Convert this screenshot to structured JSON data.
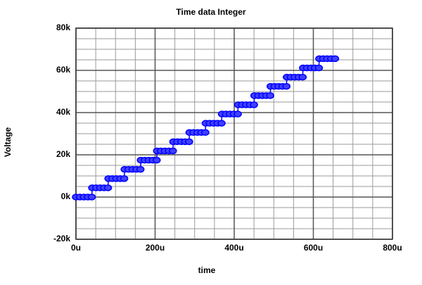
{
  "chart_data": {
    "type": "line",
    "title": "Time data Integer",
    "xlabel": "time",
    "ylabel": "Voltage",
    "x": [
      0,
      10,
      20,
      30,
      40,
      41,
      51,
      61,
      71,
      81,
      82,
      92,
      102,
      112,
      122,
      123,
      133,
      143,
      153,
      163,
      164,
      174,
      184,
      194,
      204,
      205,
      215,
      225,
      235,
      245,
      246,
      256,
      266,
      276,
      286,
      287,
      297,
      307,
      317,
      327,
      328,
      338,
      348,
      358,
      368,
      369,
      379,
      389,
      399,
      409,
      410,
      420,
      430,
      440,
      450,
      451,
      461,
      471,
      481,
      491,
      492,
      502,
      512,
      522,
      532,
      533,
      543,
      553,
      563,
      573,
      574,
      584,
      594,
      604,
      614,
      615,
      625,
      635,
      645,
      655
    ],
    "series": [
      {
        "color": "#0000ff",
        "values": [
          0,
          0,
          0,
          0,
          0,
          4369,
          4369,
          4369,
          4369,
          4369,
          8738,
          8738,
          8738,
          8738,
          8738,
          13107,
          13107,
          13107,
          13107,
          13107,
          17476,
          17476,
          17476,
          17476,
          17476,
          21845,
          21845,
          21845,
          21845,
          21845,
          26214,
          26214,
          26214,
          26214,
          26214,
          30583,
          30583,
          30583,
          30583,
          30583,
          34952,
          34952,
          34952,
          34952,
          34952,
          39321,
          39321,
          39321,
          39321,
          39321,
          43690,
          43690,
          43690,
          43690,
          43690,
          48059,
          48059,
          48059,
          48059,
          48059,
          52428,
          52428,
          52428,
          52428,
          52428,
          56797,
          56797,
          56797,
          56797,
          56797,
          61166,
          61166,
          61166,
          61166,
          61166,
          65535,
          65535,
          65535,
          65535,
          65535
        ]
      }
    ],
    "xlim": [
      0,
      800
    ],
    "xticks": [
      {
        "value": 0,
        "label": "0u"
      },
      {
        "value": 200,
        "label": "200u"
      },
      {
        "value": 400,
        "label": "400u"
      },
      {
        "value": 600,
        "label": "600u"
      },
      {
        "value": 800,
        "label": "800u"
      }
    ],
    "ylim": [
      -20000,
      80000
    ],
    "yticks": [
      {
        "value": -20000,
        "label": "-20k"
      },
      {
        "value": 0,
        "label": "0k"
      },
      {
        "value": 20000,
        "label": "20k"
      },
      {
        "value": 40000,
        "label": "40k"
      },
      {
        "value": 60000,
        "label": "60k"
      },
      {
        "value": 80000,
        "label": "80k"
      }
    ],
    "grid": true,
    "minor_divisions": 4,
    "markers": true
  }
}
